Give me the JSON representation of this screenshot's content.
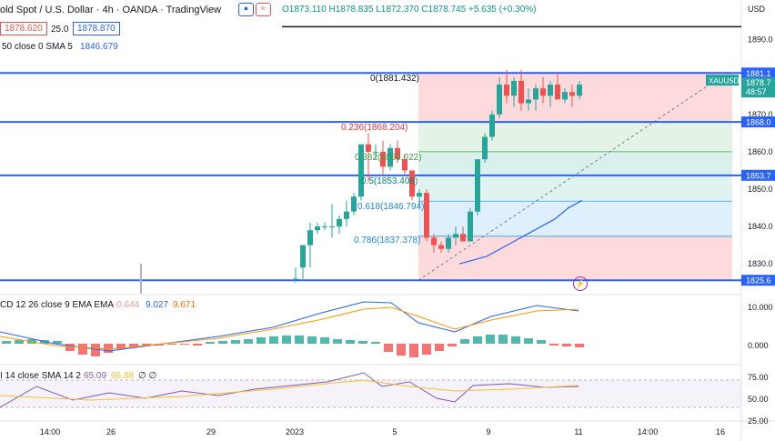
{
  "header": {
    "title": "old Spot / U.S. Dollar · 4h · OANDA · TradingView",
    "ohlc": "O1873.110 H1878.835 L1872.370 C1878.745 +5.635 (+0.30%)",
    "currency": "USD",
    "bid": "1878.620",
    "spread": "25.0",
    "ask": "1878.870",
    "sma_label": "50 close 0 SMA 5",
    "sma_value": "1846.679"
  },
  "price_axis": {
    "ticks": [
      "1890.0",
      "1880.0",
      "1870.0",
      "1860.0",
      "1850.0",
      "1840.0",
      "1830.0"
    ],
    "hline_labels": [
      "1881.1",
      "1868.0",
      "1853.7",
      "1825.6"
    ],
    "symbol_tag": "XAUUSD",
    "last_price": "1878.7",
    "countdown": "48:57"
  },
  "fib": {
    "level_0": "0(1881.432)",
    "level_236": "0.236(1868.204)",
    "level_382": "0.382(1860.022)",
    "level_5": "0.5(1853.408)",
    "level_618": "0.618(1846.794)",
    "level_786": "0.786(1837.378)"
  },
  "macd": {
    "label": "CD 12 26 close 9 EMA EMA",
    "hist": "-0.644",
    "macd": "9.027",
    "signal": "9.671",
    "ticks": [
      "10.000",
      "0.000"
    ]
  },
  "rsi": {
    "label": "I 14 close SMA 14 2",
    "rsi": "65.09",
    "sma": "66.88",
    "na": "∅ ∅",
    "ticks": [
      "75.00",
      "50.00",
      "25.00"
    ]
  },
  "time_axis": [
    "14:00",
    "26",
    "29",
    "2023",
    "5",
    "9",
    "11",
    "14:00",
    "16"
  ],
  "chart_data": {
    "type": "candlestick",
    "ylim": [
      1822,
      1897
    ],
    "candles": [
      [
        1826,
        1829,
        1825,
        1826
      ],
      [
        1829,
        1835,
        1826,
        1835
      ],
      [
        1835,
        1841,
        1829,
        1839
      ],
      [
        1839,
        1841,
        1838,
        1840
      ],
      [
        1840,
        1841,
        1839,
        1840
      ],
      [
        1840,
        1846,
        1837,
        1840
      ],
      [
        1840,
        1843,
        1838,
        1842
      ],
      [
        1842,
        1847,
        1840,
        1844
      ],
      [
        1844,
        1849,
        1843,
        1848
      ],
      [
        1848,
        1862,
        1847,
        1862
      ],
      [
        1862,
        1865,
        1852,
        1860
      ],
      [
        1860,
        1862,
        1858,
        1860
      ],
      [
        1860,
        1863,
        1854,
        1856
      ],
      [
        1856,
        1862,
        1855,
        1861
      ],
      [
        1861,
        1863,
        1857,
        1858
      ],
      [
        1858,
        1859,
        1854,
        1855
      ],
      [
        1855,
        1855,
        1847,
        1848
      ],
      [
        1848,
        1850,
        1845,
        1849
      ],
      [
        1849,
        1850,
        1836,
        1837
      ],
      [
        1837,
        1838,
        1833,
        1835
      ],
      [
        1835,
        1836,
        1833,
        1834
      ],
      [
        1834,
        1838,
        1833,
        1837
      ],
      [
        1837,
        1840,
        1835,
        1838
      ],
      [
        1838,
        1840,
        1836,
        1836
      ],
      [
        1836,
        1845,
        1836,
        1844
      ],
      [
        1844,
        1858,
        1843,
        1858
      ],
      [
        1858,
        1865,
        1857,
        1864
      ],
      [
        1864,
        1871,
        1863,
        1870
      ],
      [
        1870,
        1880,
        1869,
        1878
      ],
      [
        1878,
        1882,
        1873,
        1875
      ],
      [
        1875,
        1880,
        1872,
        1879
      ],
      [
        1879,
        1882,
        1871,
        1873
      ],
      [
        1873,
        1877,
        1871,
        1874
      ],
      [
        1874,
        1878,
        1871,
        1877
      ],
      [
        1877,
        1880,
        1873,
        1875
      ],
      [
        1875,
        1879,
        1872,
        1878
      ],
      [
        1878,
        1881,
        1874,
        1874
      ],
      [
        1874,
        1877,
        1873,
        1876
      ],
      [
        1876,
        1878,
        1872,
        1875
      ],
      [
        1875,
        1879,
        1874,
        1878
      ]
    ],
    "sma": [
      1830,
      1831,
      1832,
      1834,
      1836,
      1838,
      1840,
      1842,
      1845,
      1847
    ]
  },
  "colors": {
    "up": "#26a69a",
    "down": "#ef5350",
    "line": "#2962ff",
    "orange": "#ff9800",
    "rsi": "#7e57c2"
  }
}
